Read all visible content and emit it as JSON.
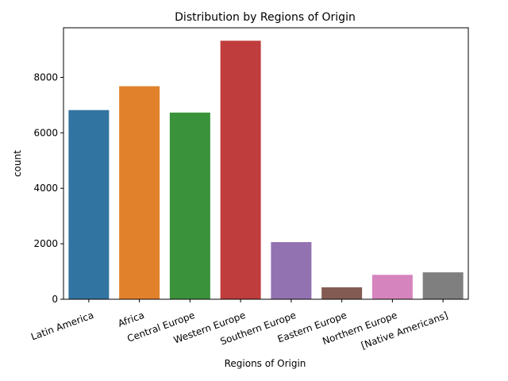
{
  "chart_data": {
    "type": "bar",
    "title": "Distribution by Regions of Origin",
    "xlabel": "Regions of Origin",
    "ylabel": "count",
    "categories": [
      "Latin America",
      "Africa",
      "Central Europe",
      "Western Europe",
      "Southern Europe",
      "Eastern Europe",
      "Northern Europe",
      "[Native Americans]"
    ],
    "values": [
      6820,
      7680,
      6730,
      9320,
      2060,
      430,
      880,
      970
    ],
    "colors": [
      "#3274a1",
      "#e1812c",
      "#3a923a",
      "#c03d3e",
      "#9372b2",
      "#845b53",
      "#d684bd",
      "#7f7f7f"
    ],
    "ylim": [
      0,
      9787
    ],
    "yticks": [
      0,
      2000,
      4000,
      6000,
      8000
    ],
    "grid": false,
    "x_tick_rotation": 20
  }
}
